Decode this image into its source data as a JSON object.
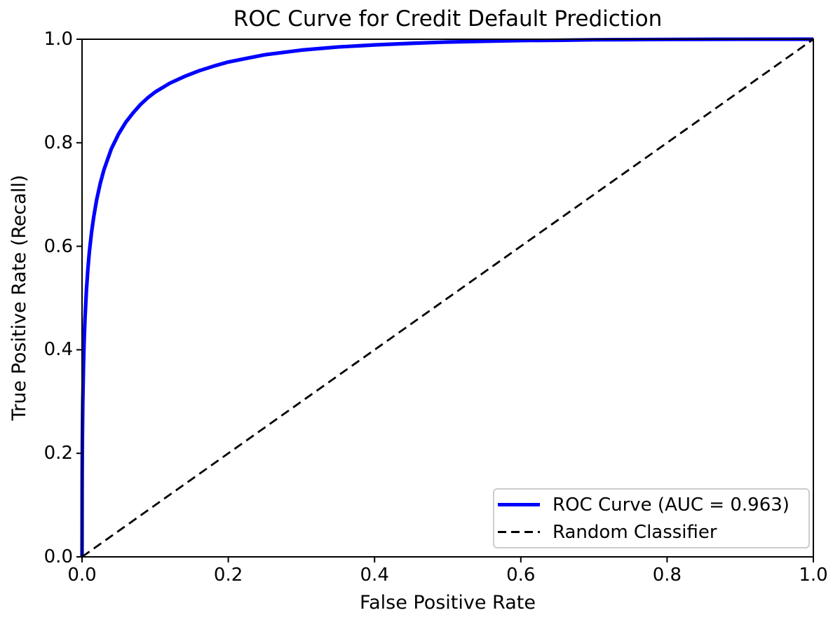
{
  "chart_data": {
    "type": "line",
    "title": "ROC Curve for Credit Default Prediction",
    "xlabel": "False Positive Rate",
    "ylabel": "True Positive Rate (Recall)",
    "xlim": [
      0.0,
      1.0
    ],
    "ylim": [
      0.0,
      1.0
    ],
    "x_ticks": [
      "0.0",
      "0.2",
      "0.4",
      "0.6",
      "0.8",
      "1.0"
    ],
    "y_ticks": [
      "0.0",
      "0.2",
      "0.4",
      "0.6",
      "0.8",
      "1.0"
    ],
    "grid": false,
    "legend_position": "lower right",
    "series": [
      {
        "name": "ROC Curve (AUC = 0.963)",
        "auc": 0.963,
        "color": "#0000ff",
        "style": "solid",
        "line_width": 5.2,
        "points": [
          [
            0.0,
            0.0
          ],
          [
            0.0002,
            0.16
          ],
          [
            0.0005,
            0.23
          ],
          [
            0.001,
            0.295
          ],
          [
            0.002,
            0.371
          ],
          [
            0.003,
            0.422
          ],
          [
            0.004,
            0.459
          ],
          [
            0.006,
            0.515
          ],
          [
            0.008,
            0.556
          ],
          [
            0.01,
            0.589
          ],
          [
            0.013,
            0.627
          ],
          [
            0.016,
            0.657
          ],
          [
            0.02,
            0.69
          ],
          [
            0.025,
            0.722
          ],
          [
            0.03,
            0.748
          ],
          [
            0.04,
            0.788
          ],
          [
            0.05,
            0.817
          ],
          [
            0.06,
            0.84
          ],
          [
            0.07,
            0.858
          ],
          [
            0.08,
            0.874
          ],
          [
            0.09,
            0.887
          ],
          [
            0.1,
            0.898
          ],
          [
            0.12,
            0.915
          ],
          [
            0.14,
            0.928
          ],
          [
            0.16,
            0.939
          ],
          [
            0.18,
            0.948
          ],
          [
            0.2,
            0.956
          ],
          [
            0.225,
            0.963
          ],
          [
            0.25,
            0.97
          ],
          [
            0.3,
            0.979
          ],
          [
            0.35,
            0.985
          ],
          [
            0.4,
            0.989
          ],
          [
            0.45,
            0.992
          ],
          [
            0.5,
            0.9946
          ],
          [
            0.55,
            0.996
          ],
          [
            0.6,
            0.9975
          ],
          [
            0.65,
            0.998
          ],
          [
            0.7,
            0.9989
          ],
          [
            0.8,
            0.9996
          ],
          [
            0.9,
            0.9999
          ],
          [
            1.0,
            1.0
          ]
        ]
      },
      {
        "name": "Random Classifier",
        "color": "#000000",
        "style": "dashed",
        "line_width": 2.8,
        "points": [
          [
            0.0,
            0.0
          ],
          [
            1.0,
            1.0
          ]
        ]
      }
    ],
    "axis_color": "#000000",
    "text_color": "#000000",
    "legend_border_color": "#cccccc",
    "background_color": "#ffffff"
  }
}
